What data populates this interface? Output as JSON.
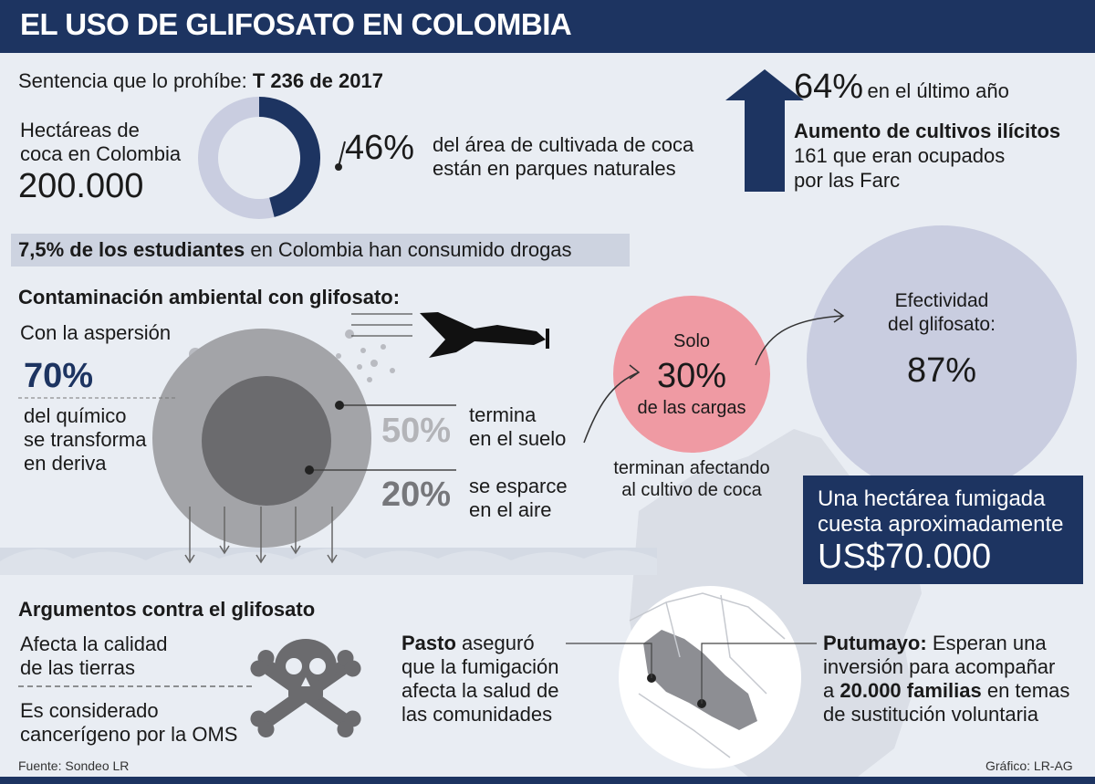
{
  "header": {
    "title": "EL USO DE GLIFOSATO EN COLOMBIA"
  },
  "sentence": {
    "label": "Sentencia que lo prohíbe:",
    "value": "T 236 de 2017"
  },
  "hectares": {
    "label_line1": "Hectáreas de",
    "label_line2": "coca en Colombia",
    "value": "200.000"
  },
  "parks": {
    "percent": "46%",
    "percent_value": 46,
    "text_line1": "del área de cultivada de coca",
    "text_line2": "están en parques naturales"
  },
  "increase": {
    "percent": "64%",
    "period": "en el último año",
    "title": "Aumento de cultivos ilícitos",
    "line1": "161 que eran ocupados",
    "line2": "por las Farc"
  },
  "students": {
    "bold": "7,5% de los estudiantes",
    "rest": "en Colombia han consumido drogas"
  },
  "contamination": {
    "title": "Contaminación ambiental con glifosato:",
    "subtitle": "Con la aspersión",
    "percent": "70%",
    "text_line1": "del químico",
    "text_line2": "se transforma",
    "text_line3": "en deriva",
    "soil_percent": "50%",
    "soil_line1": "termina",
    "soil_line2": "en el suelo",
    "air_percent": "20%",
    "air_line1": "se esparce",
    "air_line2": "en el aire"
  },
  "loads": {
    "line1": "Solo",
    "percent": "30%",
    "line2": "de las cargas",
    "caption_line1": "terminan afectando",
    "caption_line2": "al cultivo de coca"
  },
  "effectiveness": {
    "line1": "Efectividad",
    "line2": "del glifosato:",
    "percent": "87%"
  },
  "cost": {
    "line1": "Una hectárea fumigada",
    "line2": "cuesta aproximadamente",
    "value": "US$70.000"
  },
  "arguments": {
    "title": "Argumentos contra el glifosato",
    "arg1_line1": "Afecta la calidad",
    "arg1_line2": "de las tierras",
    "arg2_line1": "Es considerado",
    "arg2_line2": "cancerígeno por la OMS"
  },
  "pasto": {
    "name": "Pasto",
    "line1_rest": "aseguró",
    "line2": "que la fumigación",
    "line3": "afecta la salud de",
    "line4": "las comunidades"
  },
  "putumayo": {
    "name": "Putumayo:",
    "line1_rest": "Esperan una",
    "line2": "inversión para acompañar",
    "line3_pre": "a",
    "line3_bold": "20.000 familias",
    "line3_rest": "en temas",
    "line4": "de sustitución voluntaria"
  },
  "footer": {
    "source": "Fuente: Sondeo LR",
    "credit": "Gráfico: LR-AG"
  },
  "colors": {
    "navy": "#1d3461",
    "light_gray_blue": "#cdd3e0",
    "pink": "#ef9aa3",
    "lavender": "#c9cde0",
    "dark_gray": "#6b6b6e",
    "mid_gray": "#a3a4a8"
  },
  "icons": [
    "up-arrow-icon",
    "airplane-icon",
    "skull-crossbones-icon",
    "colombia-map-icon"
  ]
}
